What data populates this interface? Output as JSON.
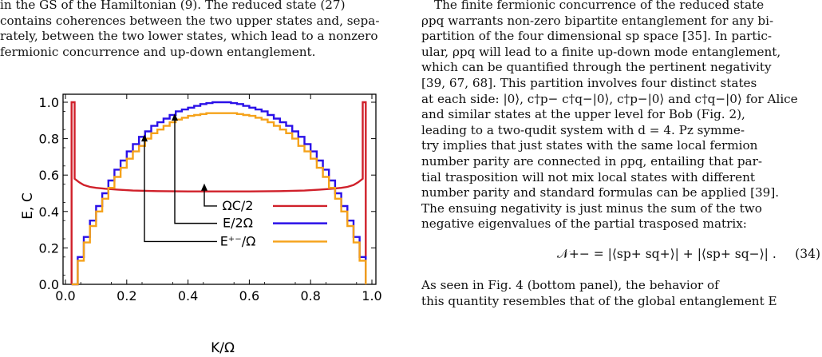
{
  "left_text": [
    "in the GS of the Hamiltonian (9).  The reduced state (27)",
    "contains coherences between the two upper states and, sepa-",
    "rately, between the two lower states, which lead to a nonzero",
    "fermionic concurrence and up-down entanglement."
  ],
  "right_text": [
    "The finite fermionic concurrence of the reduced state",
    "ρpq warrants non-zero bipartite entanglement for any bi-",
    "partition of the four dimensional sp space [35]. In partic-",
    "ular, ρpq will lead to a finite up-down mode entanglement,",
    "which can be quantified through the pertinent negativity",
    "[39, 67, 68]. This partition involves four distinct states",
    "at each side: |0⟩, c†p− c†q−|0⟩, c†p−|0⟩ and c†q−|0⟩ for Alice",
    "and similar states at the upper level for Bob (Fig. 2),",
    "leading to a two-qudit system with d = 4.  Pz symme-",
    "try implies that just states with the same local fermion",
    "number parity are connected in ρpq, entailing that par-",
    "tial trasposition will not mix local states with different",
    "number parity and standard formulas can be applied [39].",
    "The ensuing negativity is just minus the sum of the two",
    "negative eigenvalues of the partial trasposed matrix:"
  ],
  "equation": "𝒩+− = |⟨sp+ sq+⟩| + |⟨sp+ sq−⟩| .",
  "equation_number": "(34)",
  "bottom_text": [
    "As seen in Fig. 4 (bottom panel), the behavior of",
    "this quantity resembles that of the global entanglement E"
  ],
  "chart_data": {
    "type": "line",
    "xlabel": "K/Ω",
    "ylabel": "E, C",
    "xlim": [
      0.0,
      1.0
    ],
    "ylim": [
      0.0,
      1.0
    ],
    "xticks": [
      "0.0",
      "0.2",
      "0.4",
      "0.6",
      "0.8",
      "1.0"
    ],
    "yticks": [
      "0.0",
      "0.2",
      "0.4",
      "0.6",
      "0.8",
      "1.0"
    ],
    "grid": false,
    "legend": "inline-right",
    "series": [
      {
        "name": "ΩC/2",
        "color": "#d0202a",
        "x": [
          0.02,
          0.02,
          0.03,
          0.03,
          0.045,
          0.06,
          0.08,
          0.1,
          0.13,
          0.17,
          0.22,
          0.3,
          0.4,
          0.5,
          0.6,
          0.7,
          0.78,
          0.83,
          0.87,
          0.9,
          0.92,
          0.94,
          0.955,
          0.97,
          0.97,
          0.98,
          0.98
        ],
        "y": [
          0.0,
          1.0,
          1.0,
          0.58,
          0.56,
          0.545,
          0.535,
          0.53,
          0.525,
          0.52,
          0.515,
          0.512,
          0.51,
          0.51,
          0.51,
          0.512,
          0.515,
          0.52,
          0.525,
          0.53,
          0.535,
          0.545,
          0.56,
          0.58,
          1.0,
          1.0,
          0.0
        ]
      },
      {
        "name": "E/2Ω",
        "color": "#2a10e8",
        "x": [
          0.02,
          0.04,
          0.06,
          0.08,
          0.1,
          0.12,
          0.14,
          0.16,
          0.18,
          0.2,
          0.22,
          0.24,
          0.26,
          0.28,
          0.3,
          0.32,
          0.34,
          0.36,
          0.38,
          0.4,
          0.42,
          0.44,
          0.46,
          0.48,
          0.5,
          0.52,
          0.54,
          0.56,
          0.58,
          0.6,
          0.62,
          0.64,
          0.66,
          0.68,
          0.7,
          0.72,
          0.74,
          0.76,
          0.78,
          0.8,
          0.82,
          0.84,
          0.86,
          0.88,
          0.9,
          0.92,
          0.94,
          0.96,
          0.98
        ],
        "y": [
          0.0,
          0.15,
          0.26,
          0.35,
          0.43,
          0.5,
          0.57,
          0.63,
          0.68,
          0.73,
          0.77,
          0.81,
          0.84,
          0.87,
          0.89,
          0.91,
          0.93,
          0.95,
          0.96,
          0.97,
          0.98,
          0.99,
          0.995,
          1.0,
          1.0,
          1.0,
          0.995,
          0.99,
          0.98,
          0.97,
          0.96,
          0.95,
          0.93,
          0.91,
          0.89,
          0.87,
          0.84,
          0.81,
          0.77,
          0.73,
          0.68,
          0.63,
          0.57,
          0.5,
          0.43,
          0.35,
          0.26,
          0.15,
          0.0
        ]
      },
      {
        "name": "E⁺⁻/Ω",
        "color": "#f5a21a",
        "x": [
          0.02,
          0.04,
          0.06,
          0.08,
          0.1,
          0.12,
          0.14,
          0.16,
          0.18,
          0.2,
          0.22,
          0.24,
          0.26,
          0.28,
          0.3,
          0.32,
          0.34,
          0.36,
          0.38,
          0.4,
          0.42,
          0.44,
          0.46,
          0.48,
          0.5,
          0.52,
          0.54,
          0.56,
          0.58,
          0.6,
          0.62,
          0.64,
          0.66,
          0.68,
          0.7,
          0.72,
          0.74,
          0.76,
          0.78,
          0.8,
          0.82,
          0.84,
          0.86,
          0.88,
          0.9,
          0.92,
          0.94,
          0.96,
          0.98
        ],
        "y": [
          0.0,
          0.13,
          0.23,
          0.32,
          0.4,
          0.47,
          0.53,
          0.59,
          0.64,
          0.69,
          0.73,
          0.76,
          0.8,
          0.83,
          0.85,
          0.87,
          0.89,
          0.905,
          0.915,
          0.925,
          0.93,
          0.935,
          0.94,
          0.94,
          0.94,
          0.94,
          0.94,
          0.935,
          0.93,
          0.925,
          0.915,
          0.905,
          0.89,
          0.87,
          0.85,
          0.83,
          0.8,
          0.76,
          0.73,
          0.69,
          0.64,
          0.59,
          0.53,
          0.47,
          0.4,
          0.32,
          0.23,
          0.13,
          0.0
        ]
      }
    ]
  }
}
